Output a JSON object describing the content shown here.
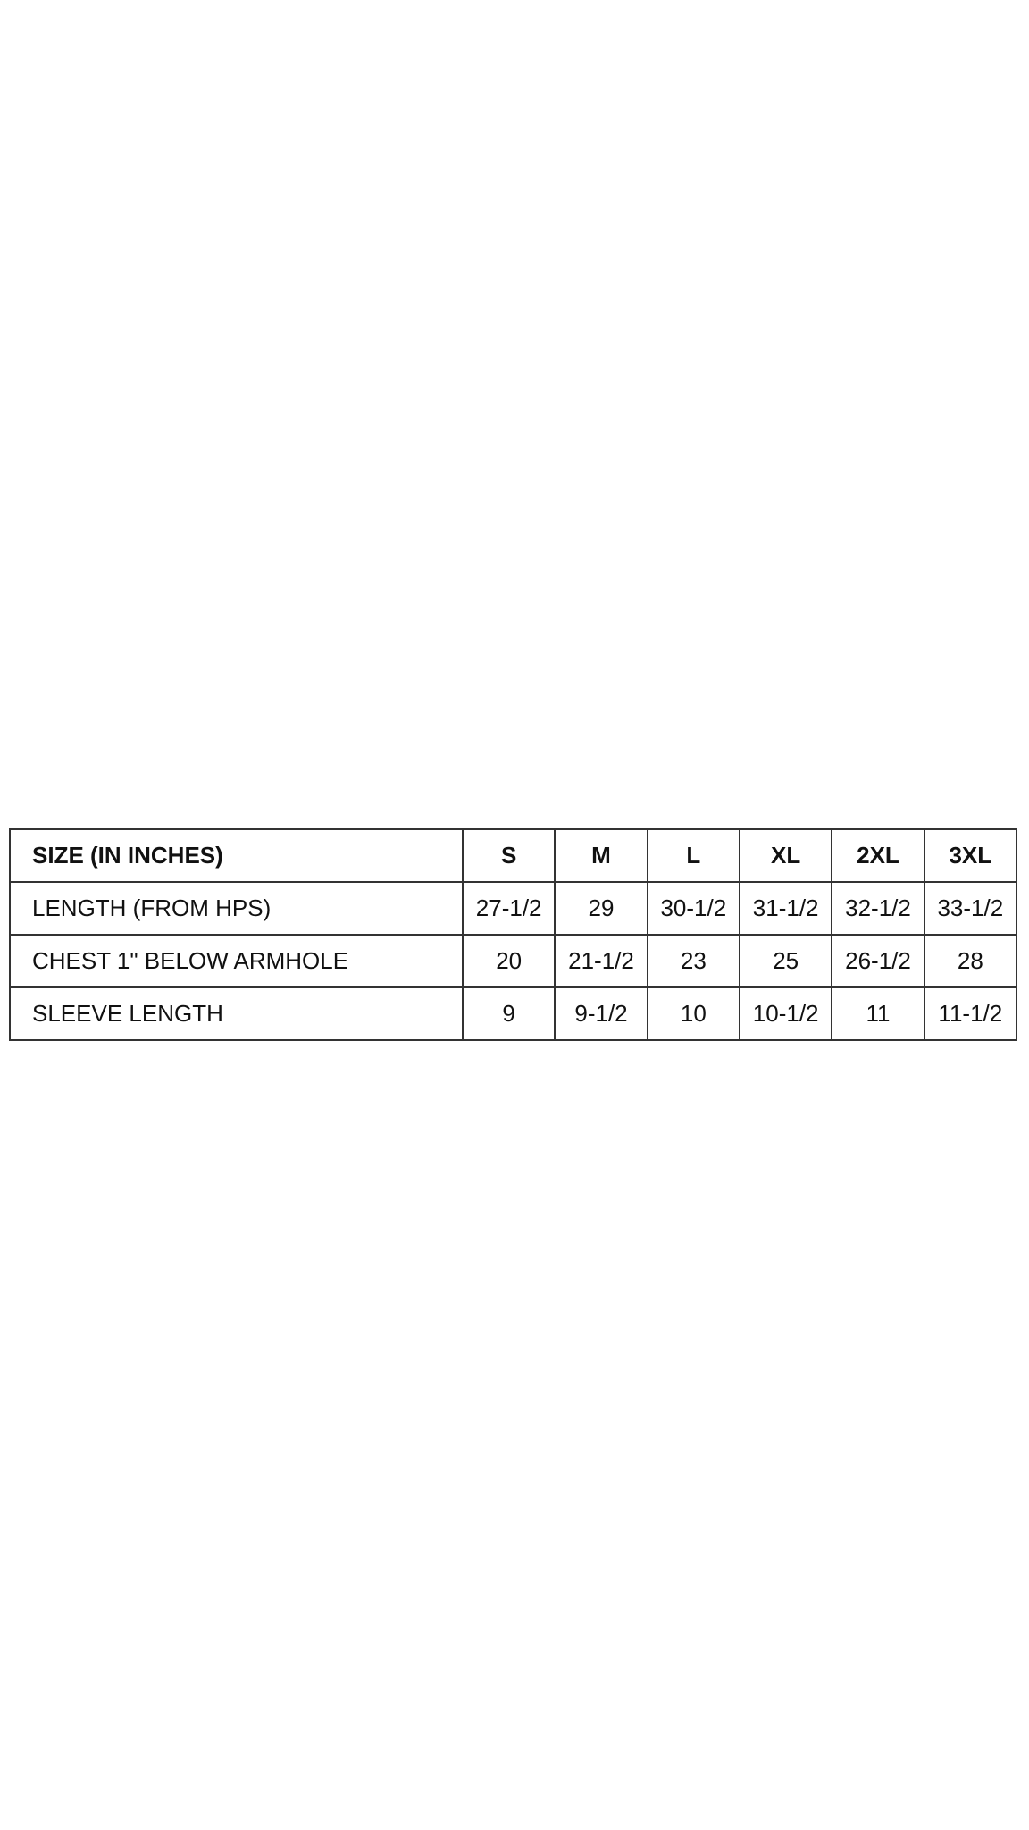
{
  "size_chart": {
    "header": {
      "label": "SIZE (IN INCHES)",
      "sizes": [
        "S",
        "M",
        "L",
        "XL",
        "2XL",
        "3XL"
      ]
    },
    "rows": [
      {
        "label": "LENGTH (FROM HPS)",
        "values": [
          "27-1/2",
          "29",
          "30-1/2",
          "31-1/2",
          "32-1/2",
          "33-1/2"
        ]
      },
      {
        "label": "CHEST 1\" BELOW ARMHOLE",
        "values": [
          "20",
          "21-1/2",
          "23",
          "25",
          "26-1/2",
          "28"
        ]
      },
      {
        "label": "SLEEVE LENGTH",
        "values": [
          "9",
          "9-1/2",
          "10",
          "10-1/2",
          "11",
          "11-1/2"
        ]
      }
    ]
  }
}
